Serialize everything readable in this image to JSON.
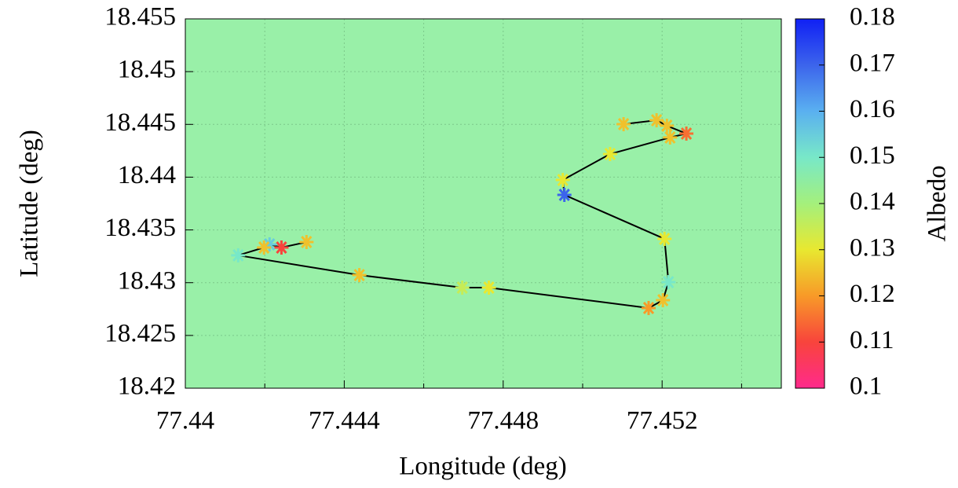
{
  "chart_data": {
    "type": "scatter",
    "x_label": "Longitude (deg)",
    "y_label": "Latitude (deg)",
    "colorbar_label": "Albedo",
    "xlim": [
      77.44,
      77.455
    ],
    "ylim": [
      18.42,
      18.455
    ],
    "xticks": [
      77.44,
      77.444,
      77.448,
      77.452
    ],
    "xminorticks": [
      77.442,
      77.446,
      77.45,
      77.454
    ],
    "yticks": [
      18.42,
      18.425,
      18.43,
      18.435,
      18.44,
      18.445,
      18.45,
      18.455
    ],
    "clim": [
      0.1,
      0.18
    ],
    "cticks": [
      0.1,
      0.11,
      0.12,
      0.13,
      0.14,
      0.15,
      0.16,
      0.17,
      0.18
    ],
    "colormap": [
      "#ff2a8c",
      "#f8443c",
      "#f89a28",
      "#e8e830",
      "#a4f07c",
      "#78e8c8",
      "#5ab0f0",
      "#3c64ec",
      "#1020f4"
    ],
    "background": "#99f0a8",
    "grid": true,
    "line_color": "#000000",
    "series": [
      {
        "name": "Albedo",
        "x": [
          77.44305,
          77.44242,
          77.44212,
          77.44198,
          77.44133,
          77.44438,
          77.44697,
          77.44764,
          77.45166,
          77.45202,
          77.45216,
          77.45206,
          77.44954,
          77.4495,
          77.45069,
          77.4522,
          77.45261,
          77.45212,
          77.45186,
          77.45103
        ],
        "y": [
          18.43385,
          18.43333,
          18.43363,
          18.43333,
          18.43259,
          18.43072,
          18.42953,
          18.42953,
          18.4276,
          18.42834,
          18.43005,
          18.43415,
          18.43832,
          18.43973,
          18.44219,
          18.44376,
          18.44413,
          18.44487,
          18.44539,
          18.44502
        ],
        "values": [
          0.125,
          0.11,
          0.155,
          0.125,
          0.15,
          0.125,
          0.135,
          0.13,
          0.12,
          0.125,
          0.15,
          0.13,
          0.17,
          0.13,
          0.13,
          0.125,
          0.115,
          0.125,
          0.125,
          0.125
        ]
      }
    ]
  }
}
